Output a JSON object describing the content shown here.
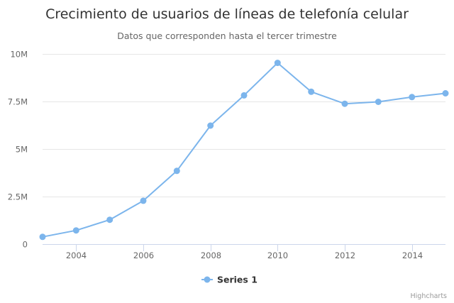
{
  "chart_data": {
    "type": "line",
    "title": "Crecimiento de usuarios de líneas de telefonía celular",
    "subtitle": "Datos que corresponden hasta el tercer trimestre",
    "xlabel": "",
    "ylabel": "",
    "x": [
      2003,
      2004,
      2005,
      2006,
      2007,
      2008,
      2009,
      2010,
      2011,
      2012,
      2013,
      2014,
      2015
    ],
    "series": [
      {
        "name": "Series 1",
        "color": "#7cb5ec",
        "values": [
          380000,
          720000,
          1280000,
          2280000,
          3850000,
          6230000,
          7820000,
          9530000,
          8010000,
          7380000,
          7480000,
          7730000,
          7930000
        ]
      }
    ],
    "xlim": [
      2003,
      2015
    ],
    "ylim": [
      0,
      10000000
    ],
    "x_ticks": [
      2004,
      2006,
      2008,
      2010,
      2012,
      2014
    ],
    "x_tick_labels": [
      "2004",
      "2006",
      "2008",
      "2010",
      "2012",
      "2014"
    ],
    "y_ticks": [
      0,
      2500000,
      5000000,
      7500000,
      10000000
    ],
    "y_tick_labels": [
      "0",
      "2.5M",
      "5M",
      "7.5M",
      "10M"
    ],
    "grid": true,
    "legend_position": "bottom-center",
    "credits": "Highcharts"
  }
}
